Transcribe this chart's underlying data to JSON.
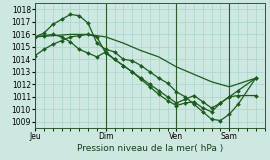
{
  "background_color": "#cce8e0",
  "grid_color": "#a8d4cc",
  "line_color": "#1a5c1a",
  "marker_color": "#1a5c1a",
  "xlabel": "Pression niveau de la mer( hPa )",
  "ylim": [
    1008.5,
    1018.5
  ],
  "yticks": [
    1009,
    1010,
    1011,
    1012,
    1013,
    1014,
    1015,
    1016,
    1017,
    1018
  ],
  "xtick_labels": [
    "Jeu",
    "Dim",
    "Ven",
    "Sam"
  ],
  "xtick_positions": [
    0,
    8,
    16,
    22
  ],
  "xlim": [
    0,
    26
  ],
  "vlines": [
    0,
    8,
    16,
    22
  ],
  "line1_x": [
    0,
    2,
    4,
    6,
    8,
    10,
    12,
    14,
    16,
    18,
    20,
    22,
    25
  ],
  "line1_y": [
    1015.8,
    1015.9,
    1016.0,
    1016.0,
    1015.8,
    1015.3,
    1014.7,
    1014.2,
    1013.4,
    1012.8,
    1012.2,
    1011.8,
    1012.5
  ],
  "line2_x": [
    0,
    1,
    2,
    3,
    4,
    5,
    6,
    7,
    8,
    9,
    10,
    11,
    12,
    13,
    14,
    15,
    16,
    17,
    18,
    19,
    20,
    21,
    22,
    23,
    25
  ],
  "line2_y": [
    1015.8,
    1016.1,
    1016.8,
    1017.2,
    1017.6,
    1017.5,
    1016.9,
    1015.3,
    1014.8,
    1014.6,
    1014.0,
    1013.9,
    1013.5,
    1013.0,
    1012.5,
    1012.1,
    1011.4,
    1011.0,
    1010.4,
    1009.8,
    1009.2,
    1009.1,
    1009.6,
    1010.4,
    1012.5
  ],
  "line3_x": [
    0,
    1,
    2,
    3,
    4,
    5,
    6,
    7,
    8,
    9,
    10,
    11,
    12,
    13,
    14,
    15,
    16,
    17,
    18,
    19,
    20,
    21,
    22,
    23,
    25
  ],
  "line3_y": [
    1015.8,
    1015.9,
    1016.0,
    1015.8,
    1015.4,
    1014.8,
    1014.5,
    1014.2,
    1014.6,
    1014.0,
    1013.5,
    1013.0,
    1012.4,
    1011.8,
    1011.2,
    1010.7,
    1010.3,
    1010.5,
    1010.6,
    1010.1,
    1009.8,
    1010.5,
    1011.0,
    1011.1,
    1011.1
  ],
  "line4_x": [
    0,
    1,
    2,
    3,
    4,
    5,
    6,
    7,
    8,
    9,
    10,
    11,
    12,
    13,
    14,
    15,
    16,
    17,
    18,
    19,
    20,
    21,
    22,
    23,
    25
  ],
  "line4_y": [
    1014.3,
    1014.8,
    1015.2,
    1015.5,
    1015.8,
    1015.9,
    1016.0,
    1015.8,
    1014.5,
    1014.0,
    1013.5,
    1013.0,
    1012.5,
    1012.0,
    1011.5,
    1011.0,
    1010.5,
    1010.8,
    1011.1,
    1010.6,
    1010.1,
    1010.5,
    1011.0,
    1011.5,
    1012.5
  ]
}
